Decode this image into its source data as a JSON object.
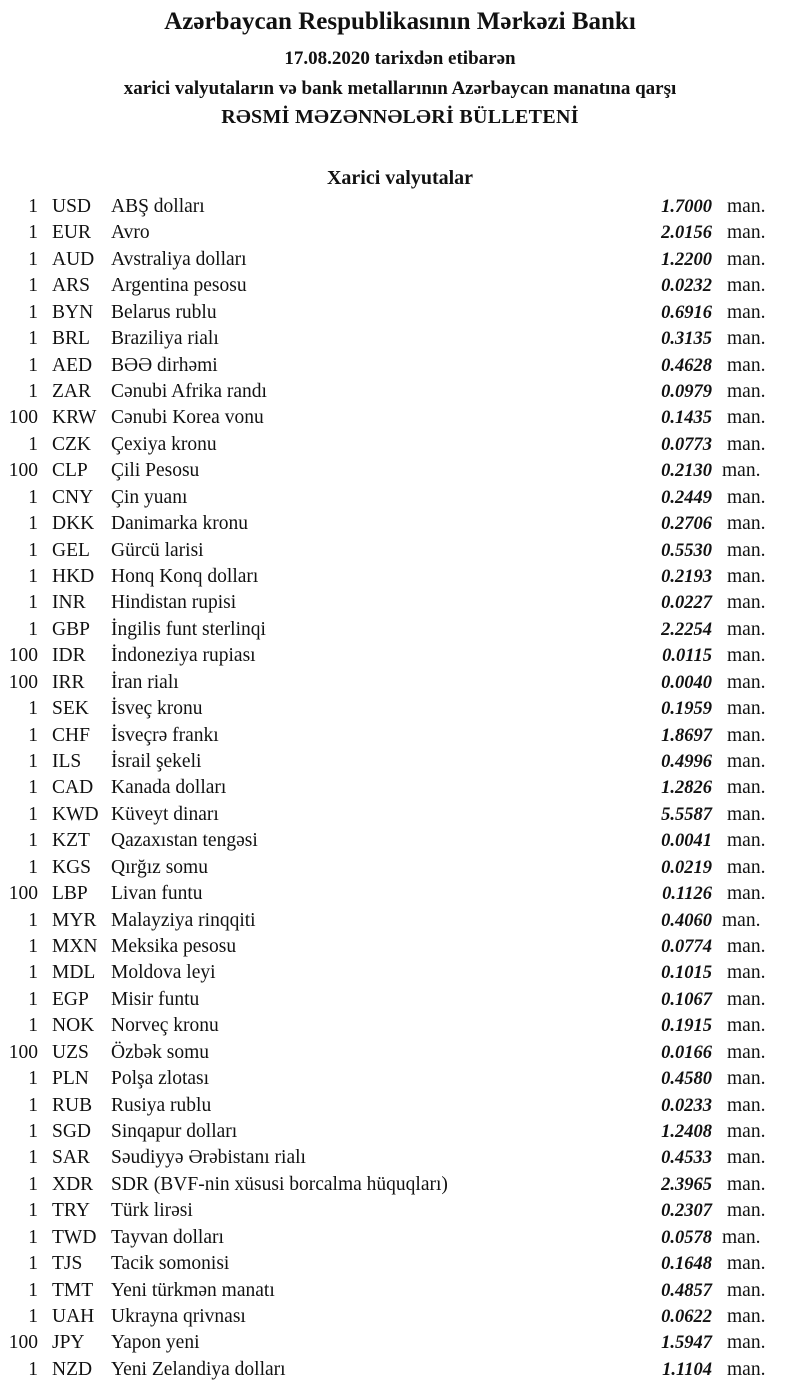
{
  "header": {
    "title": "Azərbaycan Respublikasının Mərkəzi Bankı",
    "date_line": "17.08.2020 tarixdən etibarən",
    "subtitle": "xarici valyutaların və bank metallarının Azərbaycan manatına qarşı",
    "bulletin": "RƏSMİ MƏZƏNNƏLƏRİ BÜLLETENİ"
  },
  "section_title": "Xarici valyutalar",
  "unit_label": "man.",
  "rates": [
    {
      "qty": "1",
      "code": "USD",
      "name": "ABŞ dolları",
      "value": "1.7000"
    },
    {
      "qty": "1",
      "code": "EUR",
      "name": "Avro",
      "value": "2.0156"
    },
    {
      "qty": "1",
      "code": "AUD",
      "name": "Avstraliya dolları",
      "value": "1.2200"
    },
    {
      "qty": "1",
      "code": "ARS",
      "name": "Argentina pesosu",
      "value": "0.0232"
    },
    {
      "qty": "1",
      "code": "BYN",
      "name": "Belarus rublu",
      "value": "0.6916"
    },
    {
      "qty": "1",
      "code": "BRL",
      "name": "Braziliya rialı",
      "value": "0.3135"
    },
    {
      "qty": "1",
      "code": "AED",
      "name": "BƏƏ dirhəmi",
      "value": "0.4628"
    },
    {
      "qty": "1",
      "code": "ZAR",
      "name": "Cənubi Afrika randı",
      "value": "0.0979"
    },
    {
      "qty": "100",
      "code": "KRW",
      "name": "Cənubi Korea vonu",
      "value": "0.1435"
    },
    {
      "qty": "1",
      "code": "CZK",
      "name": "Çexiya kronu",
      "value": "0.0773"
    },
    {
      "qty": "100",
      "code": "CLP",
      "name": "Çili Pesosu",
      "value": "0.2130",
      "tight": true
    },
    {
      "qty": "1",
      "code": "CNY",
      "name": "Çin yuanı",
      "value": "0.2449"
    },
    {
      "qty": "1",
      "code": "DKK",
      "name": "Danimarka kronu",
      "value": "0.2706"
    },
    {
      "qty": "1",
      "code": "GEL",
      "name": "Gürcü larisi",
      "value": "0.5530"
    },
    {
      "qty": "1",
      "code": "HKD",
      "name": "Honq Konq dolları",
      "value": "0.2193"
    },
    {
      "qty": "1",
      "code": "INR",
      "name": "Hindistan rupisi",
      "value": "0.0227"
    },
    {
      "qty": "1",
      "code": "GBP",
      "name": "İngilis funt sterlinqi",
      "value": "2.2254"
    },
    {
      "qty": "100",
      "code": "IDR",
      "name": "İndoneziya rupiası",
      "value": "0.0115"
    },
    {
      "qty": "100",
      "code": "IRR",
      "name": "İran rialı",
      "value": "0.0040"
    },
    {
      "qty": "1",
      "code": "SEK",
      "name": "İsveç kronu",
      "value": "0.1959"
    },
    {
      "qty": "1",
      "code": "CHF",
      "name": "İsveçrə frankı",
      "value": "1.8697"
    },
    {
      "qty": "1",
      "code": "ILS",
      "name": "İsrail şekeli",
      "value": "0.4996"
    },
    {
      "qty": "1",
      "code": "CAD",
      "name": "Kanada dolları",
      "value": "1.2826"
    },
    {
      "qty": "1",
      "code": "KWD",
      "name": "Küveyt dinarı",
      "value": "5.5587"
    },
    {
      "qty": "1",
      "code": "KZT",
      "name": "Qazaxıstan tengəsi",
      "value": "0.0041"
    },
    {
      "qty": "1",
      "code": "KGS",
      "name": "Qırğız somu",
      "value": "0.0219"
    },
    {
      "qty": "100",
      "code": "LBP",
      "name": "Livan funtu",
      "value": "0.1126"
    },
    {
      "qty": "1",
      "code": "MYR",
      "name": "Malayziya rinqqiti",
      "value": "0.4060",
      "tight": true
    },
    {
      "qty": "1",
      "code": "MXN",
      "name": "Meksika pesosu",
      "value": "0.0774"
    },
    {
      "qty": "1",
      "code": "MDL",
      "name": "Moldova leyi",
      "value": "0.1015"
    },
    {
      "qty": "1",
      "code": "EGP",
      "name": "Misir funtu",
      "value": "0.1067"
    },
    {
      "qty": "1",
      "code": "NOK",
      "name": "Norveç kronu",
      "value": "0.1915"
    },
    {
      "qty": "100",
      "code": "UZS",
      "name": "Özbək somu",
      "value": "0.0166"
    },
    {
      "qty": "1",
      "code": "PLN",
      "name": "Polşa zlotası",
      "value": "0.4580"
    },
    {
      "qty": "1",
      "code": "RUB",
      "name": "Rusiya rublu",
      "value": "0.0233"
    },
    {
      "qty": "1",
      "code": "SGD",
      "name": "Sinqapur dolları",
      "value": "1.2408"
    },
    {
      "qty": "1",
      "code": "SAR",
      "name": "Səudiyyə Ərəbistanı rialı",
      "value": "0.4533"
    },
    {
      "qty": "1",
      "code": "XDR",
      "name": "SDR (BVF-nin xüsusi borcalma hüquqları)",
      "value": "2.3965"
    },
    {
      "qty": "1",
      "code": "TRY",
      "name": "Türk lirəsi",
      "value": "0.2307"
    },
    {
      "qty": "1",
      "code": "TWD",
      "name": "Tayvan dolları",
      "value": "0.0578",
      "tight": true
    },
    {
      "qty": "1",
      "code": "TJS",
      "name": "Tacik somonisi",
      "value": "0.1648"
    },
    {
      "qty": "1",
      "code": "TMT",
      "name": "Yeni türkmən manatı",
      "value": "0.4857"
    },
    {
      "qty": "1",
      "code": "UAH",
      "name": "Ukrayna qrivnası",
      "value": "0.0622"
    },
    {
      "qty": "100",
      "code": "JPY",
      "name": "Yapon yeni",
      "value": "1.5947"
    },
    {
      "qty": "1",
      "code": "NZD",
      "name": "Yeni Zelandiya dolları",
      "value": "1.1104"
    }
  ]
}
